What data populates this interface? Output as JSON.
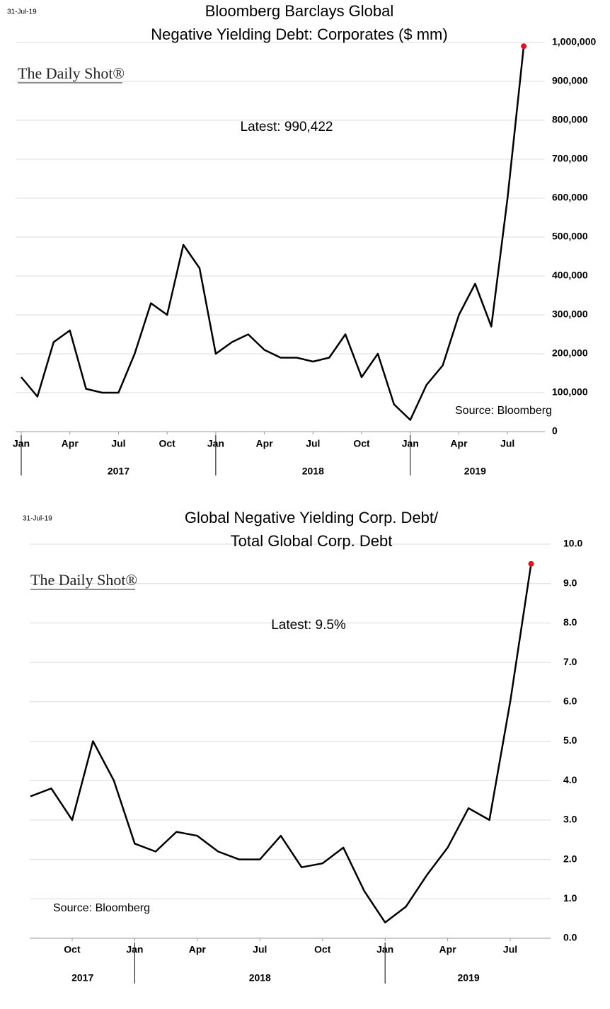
{
  "chart_data": [
    {
      "type": "line",
      "date_label": "31-Jul-19",
      "title_lines": [
        "Bloomberg Barclays Global",
        "Negative Yielding Debt: Corporates ($ mm)"
      ],
      "watermark": "The Daily Shot®",
      "annotation": "Latest:  990,422",
      "source": "Source: Bloomberg",
      "color": "#000000",
      "last_point_color": "#e0141e",
      "grid": true,
      "x": [
        "2017-01",
        "2017-02",
        "2017-03",
        "2017-04",
        "2017-05",
        "2017-06",
        "2017-07",
        "2017-08",
        "2017-09",
        "2017-10",
        "2017-11",
        "2017-12",
        "2018-01",
        "2018-02",
        "2018-03",
        "2018-04",
        "2018-05",
        "2018-06",
        "2018-07",
        "2018-08",
        "2018-09",
        "2018-10",
        "2018-11",
        "2018-12",
        "2019-01",
        "2019-02",
        "2019-03",
        "2019-04",
        "2019-05",
        "2019-06",
        "2019-07",
        "2019-08"
      ],
      "values": [
        140000,
        90000,
        230000,
        260000,
        110000,
        100000,
        100000,
        200000,
        330000,
        300000,
        480000,
        420000,
        200000,
        230000,
        250000,
        210000,
        190000,
        190000,
        180000,
        190000,
        250000,
        140000,
        200000,
        70000,
        30000,
        120000,
        170000,
        300000,
        380000,
        270000,
        600000,
        990422
      ],
      "xlim": [
        "2017-01",
        "2019-09"
      ],
      "xticks": [
        {
          "value": "2017-01",
          "label": "Jan"
        },
        {
          "value": "2017-04",
          "label": "Apr"
        },
        {
          "value": "2017-07",
          "label": "Jul"
        },
        {
          "value": "2017-10",
          "label": "Oct"
        },
        {
          "value": "2018-01",
          "label": "Jan"
        },
        {
          "value": "2018-04",
          "label": "Apr"
        },
        {
          "value": "2018-07",
          "label": "Jul"
        },
        {
          "value": "2018-10",
          "label": "Oct"
        },
        {
          "value": "2019-01",
          "label": "Jan"
        },
        {
          "value": "2019-04",
          "label": "Apr"
        },
        {
          "value": "2019-07",
          "label": "Jul"
        }
      ],
      "year_labels": [
        "2017",
        "2018",
        "2019"
      ],
      "ylim": [
        0,
        1000000
      ],
      "yticks": [
        0,
        {
          "value": 100000,
          "label": "100,000"
        },
        {
          "value": 200000,
          "label": "200,000"
        },
        {
          "value": 300000,
          "label": "300,000"
        },
        {
          "value": 400000,
          "label": "400,000"
        },
        {
          "value": 500000,
          "label": "500,000"
        },
        {
          "value": 600000,
          "label": "600,000"
        },
        {
          "value": 700000,
          "label": "700,000"
        },
        {
          "value": 800000,
          "label": "800,000"
        },
        {
          "value": 900000,
          "label": "900,000"
        },
        {
          "value": 1000000,
          "label": "1,000,000"
        }
      ]
    },
    {
      "type": "line",
      "date_label": "31-Jul-19",
      "title_lines": [
        "Global Negative Yielding Corp. Debt/",
        "Total Global Corp. Debt"
      ],
      "watermark": "The Daily Shot®",
      "annotation": "Latest:  9.5%",
      "source": "Source: Bloomberg",
      "color": "#000000",
      "last_point_color": "#e0141e",
      "grid": true,
      "x": [
        "2017-08",
        "2017-09",
        "2017-10",
        "2017-11",
        "2017-12",
        "2018-01",
        "2018-02",
        "2018-03",
        "2018-04",
        "2018-05",
        "2018-06",
        "2018-07",
        "2018-08",
        "2018-09",
        "2018-10",
        "2018-11",
        "2018-12",
        "2019-01",
        "2019-02",
        "2019-03",
        "2019-04",
        "2019-05",
        "2019-06",
        "2019-07",
        "2019-08"
      ],
      "values": [
        3.6,
        3.8,
        3.0,
        5.0,
        4.0,
        2.4,
        2.2,
        2.7,
        2.6,
        2.2,
        2.0,
        2.0,
        2.6,
        1.8,
        1.9,
        2.3,
        1.2,
        0.4,
        0.8,
        1.6,
        2.3,
        3.3,
        3.0,
        6.0,
        9.5
      ],
      "xlim": [
        "2017-08",
        "2019-09"
      ],
      "xticks": [
        {
          "value": "2017-10",
          "label": "Oct"
        },
        {
          "value": "2018-01",
          "label": "Jan"
        },
        {
          "value": "2018-04",
          "label": "Apr"
        },
        {
          "value": "2018-07",
          "label": "Jul"
        },
        {
          "value": "2018-10",
          "label": "Oct"
        },
        {
          "value": "2019-01",
          "label": "Jan"
        },
        {
          "value": "2019-04",
          "label": "Apr"
        },
        {
          "value": "2019-07",
          "label": "Jul"
        }
      ],
      "year_labels": [
        "2017",
        "2018",
        "2019"
      ],
      "ylim": [
        0,
        10
      ],
      "yticks": [
        {
          "value": 0,
          "label": "0.0"
        },
        {
          "value": 1,
          "label": "1.0"
        },
        {
          "value": 2,
          "label": "2.0"
        },
        {
          "value": 3,
          "label": "3.0"
        },
        {
          "value": 4,
          "label": "4.0"
        },
        {
          "value": 5,
          "label": "5.0"
        },
        {
          "value": 6,
          "label": "6.0"
        },
        {
          "value": 7,
          "label": "7.0"
        },
        {
          "value": 8,
          "label": "8.0"
        },
        {
          "value": 9,
          "label": "9.0"
        },
        {
          "value": 10,
          "label": "10.0"
        }
      ]
    }
  ]
}
